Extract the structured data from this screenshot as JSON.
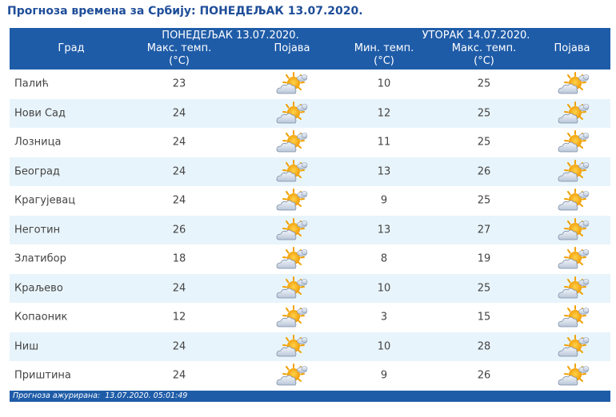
{
  "title": "Прогноза времена за Србију: ПОНЕДЕЉАК  13.07.2020.",
  "header": {
    "city": "Град",
    "day1": "ПОНЕДЕЉАК  13.07.2020.",
    "day1_max_line1": "Макс. темп.",
    "day1_max_line2": "(°C)",
    "day1_phen": "Појава",
    "day2": "УТОРАК  14.07.2020.",
    "day2_min_line1": "Мин. темп.",
    "day2_min_line2": "(°C)",
    "day2_max_line1": "Макс. темп.",
    "day2_max_line2": "(°C)",
    "day2_phen": "Појава"
  },
  "weather_icon": "partly-cloudy-sun-icon",
  "rows": [
    {
      "city": "Палић",
      "max1": "23",
      "min2": "10",
      "max2": "25"
    },
    {
      "city": "Нови Сад",
      "max1": "24",
      "min2": "12",
      "max2": "25"
    },
    {
      "city": "Лозница",
      "max1": "24",
      "min2": "11",
      "max2": "25"
    },
    {
      "city": "Београд",
      "max1": "24",
      "min2": "13",
      "max2": "26"
    },
    {
      "city": "Крагујевац",
      "max1": "24",
      "min2": "9",
      "max2": "25"
    },
    {
      "city": "Неготин",
      "max1": "26",
      "min2": "13",
      "max2": "27"
    },
    {
      "city": "Златибор",
      "max1": "18",
      "min2": "8",
      "max2": "19"
    },
    {
      "city": "Краљево",
      "max1": "24",
      "min2": "10",
      "max2": "25"
    },
    {
      "city": "Копаоник",
      "max1": "12",
      "min2": "3",
      "max2": "15"
    },
    {
      "city": "Ниш",
      "max1": "24",
      "min2": "10",
      "max2": "28"
    },
    {
      "city": "Приштина",
      "max1": "24",
      "min2": "9",
      "max2": "26"
    }
  ],
  "footer": "Прогноза ажурирана:  13.07.2020. 05:01:49"
}
